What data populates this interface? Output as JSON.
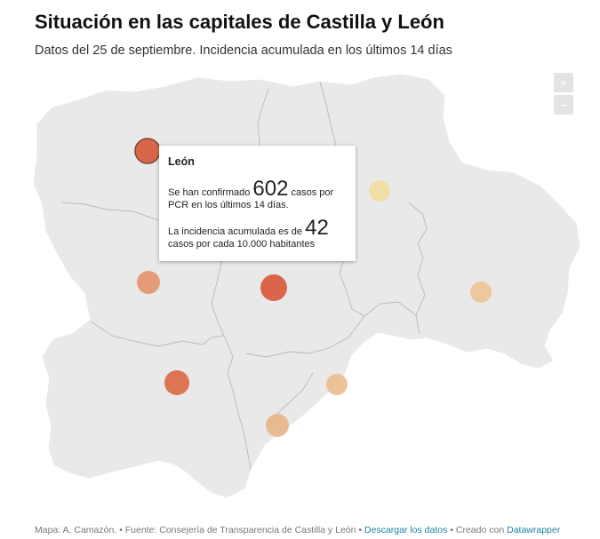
{
  "header": {
    "title": "Situación en las capitales de Castilla y León",
    "subtitle": "Datos del 25 de septiembre. Incidencia acumulada en los últimos 14 días"
  },
  "zoom": {
    "in_label": "+",
    "out_label": "−"
  },
  "tooltip": {
    "city": "León",
    "line1_pre": "Se han confirmado",
    "cases": "602",
    "line1_post": "casos por",
    "line2": "PCR en los últimos 14 días.",
    "line3_pre": "La incidencia acumulada es de",
    "incidence": "42",
    "line4": "casos por cada 10.000 habitantes"
  },
  "footer": {
    "credits": "Mapa: A. Camazón. • Fuente: Consejería de Transparencia de Castilla y León •",
    "download_label": "Descargar los datos",
    "created": "• Creado con",
    "tool_label": "Datawrapper"
  },
  "colors": {
    "map_fill": "#e9e9e9",
    "border": "#b8b8b8",
    "high": "#d95f41",
    "mid": "#e4926a",
    "low": "#e8bd90",
    "lowest": "#f0dea0"
  }
}
